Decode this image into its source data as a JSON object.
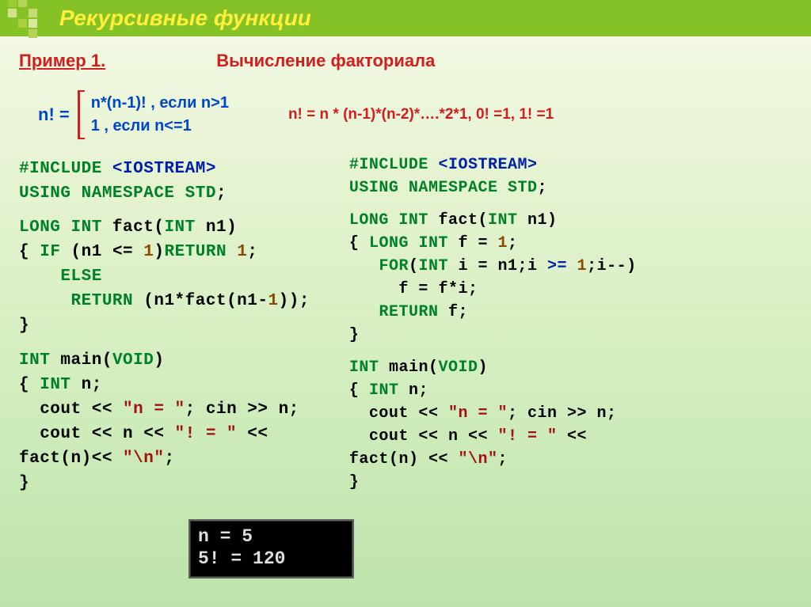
{
  "header": {
    "title": "Рекурсивные функции"
  },
  "example": {
    "label": "Пример 1.",
    "title": "Вычисление факториала"
  },
  "formula": {
    "lhs": "n!  =",
    "case1": "n*(n-1)! , если n>1",
    "case2": "1 , если n<=1",
    "rhs": "n! = n * (n-1)*(n-2)*….*2*1,  0! =1, 1! =1"
  },
  "code_left": {
    "l1a": "#include ",
    "l1b": "<IOSTREAM>",
    "l2a": "using namespace ",
    "l2b": "std",
    "l2c": ";",
    "l3a": "long int ",
    "l3b": "fact",
    "l3c": "(",
    "l3d": "int",
    "l3e": " n1)",
    "l4a": "{ ",
    "l4b": "if",
    "l4c": " (n1 <= ",
    "l4d": "1",
    "l4e": ")",
    "l4f": "return ",
    "l4g": "1",
    "l4h": ";",
    "l5": "    else",
    "l6a": "     ",
    "l6b": "return",
    "l6c": " (n1*",
    "l6d": "fact",
    "l6e": "(n1-",
    "l6f": "1",
    "l6g": "));",
    "l7": "}",
    "l8a": "int ",
    "l8b": "main",
    "l8c": "(",
    "l8d": "void",
    "l8e": ")",
    "l9a": "{ ",
    "l9b": "int",
    "l9c": " n;",
    "l10a": "  cout << ",
    "l10b": "\"n = \"",
    "l10c": "; cin >> n;",
    "l11a": "  cout << n << ",
    "l11b": "\"! = \"",
    "l11c": " <<",
    "l12a": "fact",
    "l12b": "(n)<< ",
    "l12c": "\"\\n\"",
    "l12d": ";",
    "l13": "}"
  },
  "code_right": {
    "l1a": "#include ",
    "l1b": "<IOSTREAM>",
    "l2a": "using namespace ",
    "l2b": "std",
    "l2c": ";",
    "l3a": "long int ",
    "l3b": "fact",
    "l3c": "(",
    "l3d": "int",
    "l3e": " n1)",
    "l4a": "{ ",
    "l4b": "long int",
    "l4c": " f = ",
    "l4d": "1",
    "l4e": ";",
    "l5a": "   ",
    "l5b": "for",
    "l5c": "(",
    "l5d": "int",
    "l5e": " i = n1;i ",
    "l5f": ">=",
    "l5g": " ",
    "l5h": "1",
    "l5i": ";i--)",
    "l6": "     f = f*i;",
    "l7a": "   ",
    "l7b": "return",
    "l7c": " f;",
    "l8": "}",
    "l9a": "int ",
    "l9b": "main",
    "l9c": "(",
    "l9d": "void",
    "l9e": ")",
    "l10a": "{ ",
    "l10b": "int",
    "l10c": " n;",
    "l11a": "  cout << ",
    "l11b": "\"n = \"",
    "l11c": "; cin >> n;",
    "l12a": "  cout << n << ",
    "l12b": "\"! = \"",
    "l12c": " <<",
    "l13a": "fact",
    "l13b": "(n) << ",
    "l13c": "\"\\n\"",
    "l13d": ";",
    "l14": "}"
  },
  "terminal": {
    "l1": "n = 5",
    "l2": "5! = 120"
  },
  "colors": {
    "header_bg": "#85c226",
    "header_text": "#ffef3b",
    "red": "#d21e1e",
    "blue": "#0046c9",
    "code_green": "#008028",
    "code_blue": "#001eaa",
    "code_red": "#a21010",
    "code_brown": "#8a4a00"
  }
}
